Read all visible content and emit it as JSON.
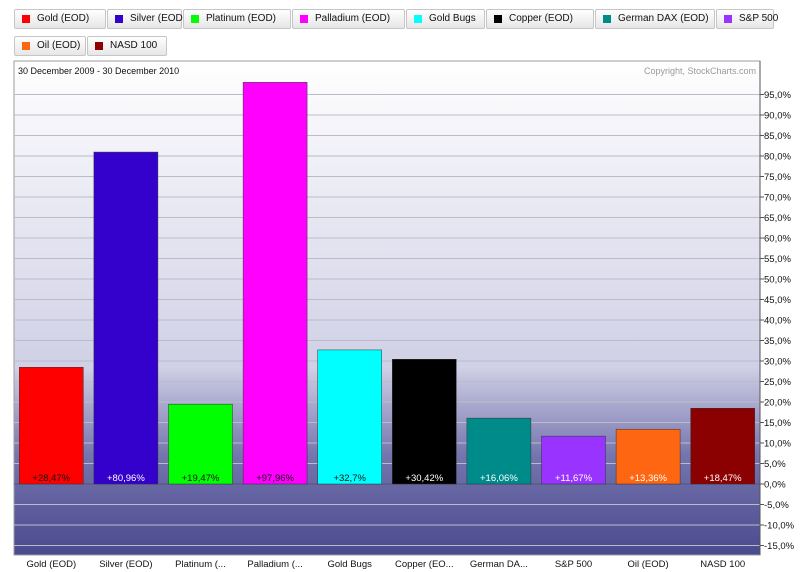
{
  "legend": [
    {
      "label": "Gold (EOD)",
      "color": "#ff0000"
    },
    {
      "label": "Silver (EOD)",
      "color": "#3300cc"
    },
    {
      "label": "Platinum (EOD)",
      "color": "#00ff00"
    },
    {
      "label": "Palladium (EOD)",
      "color": "#ff00ff"
    },
    {
      "label": "Gold Bugs",
      "color": "#00ffff"
    },
    {
      "label": "Copper (EOD)",
      "color": "#000000"
    },
    {
      "label": "German DAX (EOD)",
      "color": "#008b8b"
    },
    {
      "label": "S&P 500",
      "color": "#9933ff"
    },
    {
      "label": "Oil (EOD)",
      "color": "#ff6611"
    },
    {
      "label": "NASD 100",
      "color": "#8b0000"
    }
  ],
  "date_range": "30 December 2009 - 30 December 2010",
  "copyright": "Copyright, StockCharts.com",
  "chart_data": {
    "type": "bar",
    "categories": [
      "Gold (EOD)",
      "Silver (EOD)",
      "Platinum (...",
      "Palladium (...",
      "Gold Bugs",
      "Copper (EO...",
      "German DA...",
      "S&P 500",
      "Oil (EOD)",
      "NASD 100"
    ],
    "values": [
      28.47,
      80.96,
      19.47,
      97.96,
      32.7,
      30.42,
      16.06,
      11.67,
      13.36,
      18.47
    ],
    "value_labels": [
      "+28,47%",
      "+80,96%",
      "+19,47%",
      "+97,96%",
      "+32,7%",
      "+30,42%",
      "+16,06%",
      "+11,67%",
      "+13,36%",
      "+18,47%"
    ],
    "colors": [
      "#ff0000",
      "#3300cc",
      "#00ff00",
      "#ff00ff",
      "#00ffff",
      "#000000",
      "#008b8b",
      "#9933ff",
      "#ff6611",
      "#8b0000"
    ],
    "label_colors": [
      "#111111",
      "#ffffff",
      "#111111",
      "#111111",
      "#111111",
      "#ffffff",
      "#ffffff",
      "#ffffff",
      "#ffffff",
      "#ffffff"
    ],
    "y_ticks": [
      95,
      90,
      85,
      80,
      75,
      70,
      65,
      60,
      55,
      50,
      45,
      40,
      35,
      30,
      25,
      20,
      15,
      10,
      5,
      0,
      -5,
      -10,
      -15
    ],
    "y_tick_labels": [
      "95,0%",
      "90,0%",
      "85,0%",
      "80,0%",
      "75,0%",
      "70,0%",
      "65,0%",
      "60,0%",
      "55,0%",
      "50,0%",
      "45,0%",
      "40,0%",
      "35,0%",
      "30,0%",
      "25,0%",
      "20,0%",
      "15,0%",
      "10,0%",
      "5,0%",
      "0,0%",
      "-5,0%",
      "-10,0%",
      "-15,0%"
    ],
    "ylim": [
      -17.5,
      102
    ],
    "y_axis": "right",
    "grid": true,
    "legend_position": "top"
  }
}
